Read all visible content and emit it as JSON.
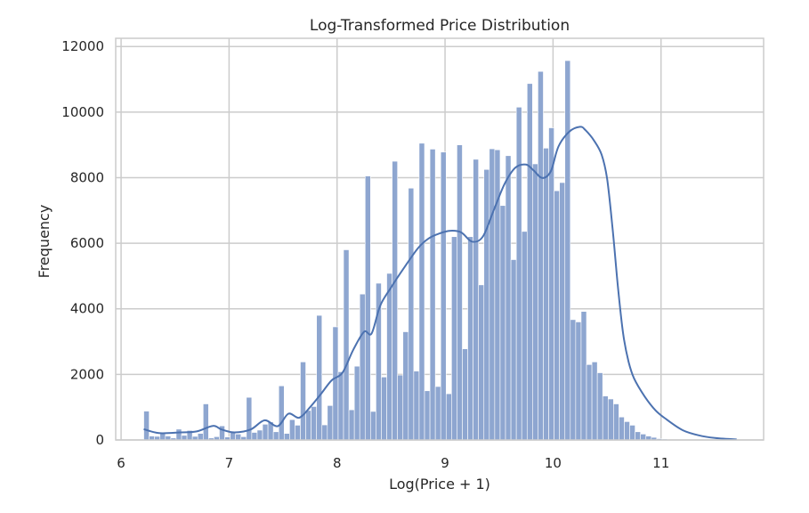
{
  "chart_data": {
    "type": "histogram",
    "title": "Log-Transformed Price Distribution",
    "xlabel": "Log(Price + 1)",
    "ylabel": "Frequency",
    "xlim": [
      5.95,
      11.95
    ],
    "ylim": [
      0,
      12250
    ],
    "xticks": [
      6,
      7,
      8,
      9,
      10,
      11
    ],
    "yticks": [
      0,
      2000,
      4000,
      6000,
      8000,
      10000,
      12000
    ],
    "grid": true,
    "bar_color": "#8ea6d0",
    "bar_edge_color": "#ffffff",
    "kde_color": "#4c72b0",
    "bin_start": 6.21,
    "bin_width": 0.05,
    "counts": [
      880,
      120,
      110,
      200,
      120,
      60,
      330,
      140,
      290,
      110,
      200,
      1100,
      60,
      100,
      430,
      90,
      240,
      180,
      100,
      1300,
      230,
      300,
      480,
      550,
      250,
      1650,
      200,
      620,
      450,
      2380,
      900,
      1020,
      3800,
      460,
      1050,
      3450,
      2080,
      5800,
      920,
      2250,
      4450,
      8050,
      870,
      4780,
      1920,
      5080,
      8500,
      1980,
      3300,
      7680,
      2100,
      9050,
      1500,
      8870,
      1630,
      8780,
      1410,
      6200,
      9000,
      2780,
      6200,
      8560,
      4730,
      8250,
      8880,
      8850,
      7150,
      8670,
      5500,
      10150,
      6360,
      10870,
      8420,
      11240,
      8900,
      9520,
      7600,
      7850,
      11570,
      3670,
      3600,
      3920,
      2300,
      2380,
      2050,
      1340,
      1250,
      1100,
      700,
      560,
      450,
      250,
      180,
      120,
      80,
      40,
      30
    ],
    "kde": {
      "x": [
        6.21,
        6.35,
        6.55,
        6.7,
        6.85,
        6.93,
        7.05,
        7.2,
        7.33,
        7.45,
        7.55,
        7.65,
        7.75,
        7.85,
        7.95,
        8.05,
        8.15,
        8.25,
        8.32,
        8.4,
        8.5,
        8.62,
        8.75,
        8.85,
        8.95,
        9.05,
        9.15,
        9.25,
        9.35,
        9.45,
        9.55,
        9.65,
        9.75,
        9.82,
        9.9,
        9.98,
        10.05,
        10.15,
        10.25,
        10.3,
        10.38,
        10.45,
        10.5,
        10.55,
        10.6,
        10.65,
        10.7,
        10.75,
        10.85,
        10.95,
        11.05,
        11.2,
        11.35,
        11.5,
        11.7
      ],
      "y": [
        330,
        210,
        230,
        260,
        430,
        320,
        230,
        320,
        600,
        420,
        800,
        680,
        1000,
        1400,
        1820,
        2050,
        2750,
        3300,
        3250,
        4100,
        4650,
        5250,
        5850,
        6150,
        6300,
        6380,
        6330,
        6050,
        6200,
        7000,
        7800,
        8300,
        8400,
        8220,
        7990,
        8200,
        8950,
        9400,
        9550,
        9450,
        9130,
        8700,
        7980,
        6500,
        4700,
        3220,
        2380,
        1880,
        1320,
        900,
        630,
        300,
        140,
        60,
        15
      ]
    }
  }
}
